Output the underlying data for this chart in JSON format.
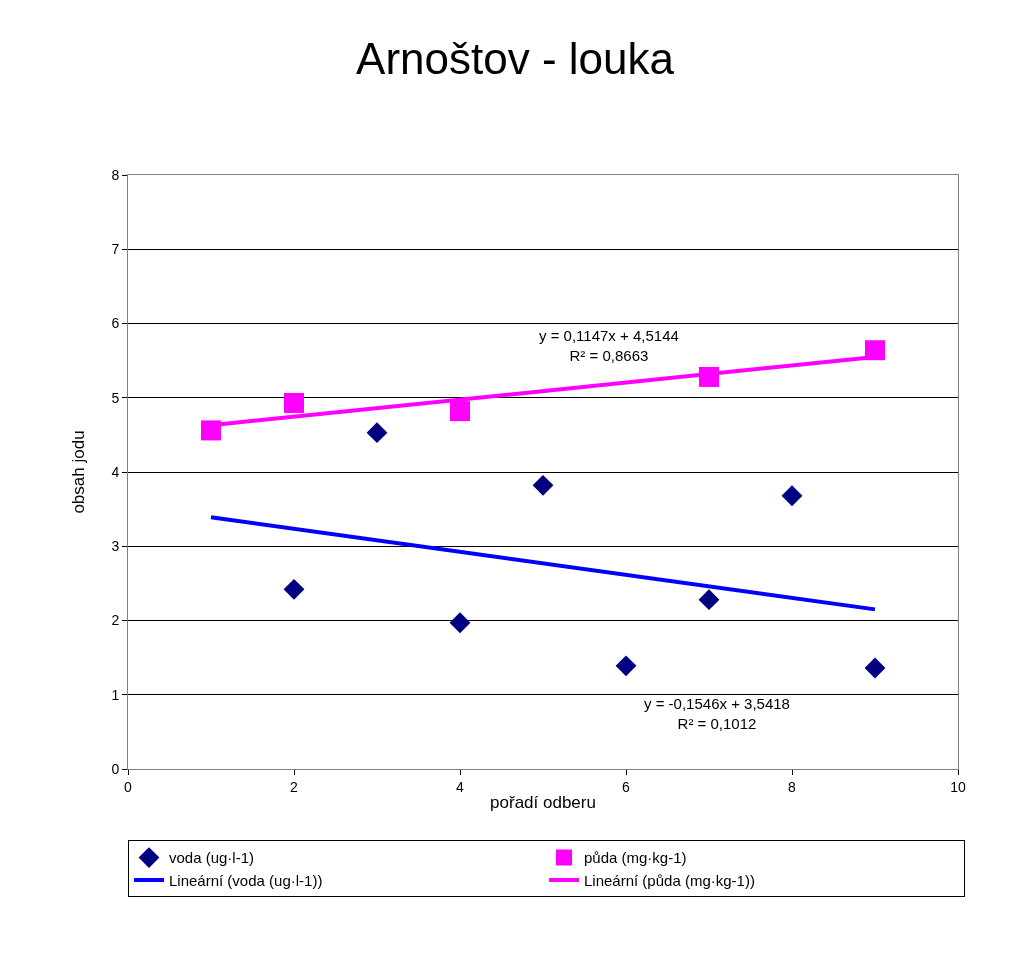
{
  "chart_data": {
    "type": "scatter",
    "title": "Arnoštov - louka",
    "xlabel": "pořadí odberu",
    "ylabel": "obsah jodu",
    "xlim": [
      0,
      10
    ],
    "xticks": [
      0,
      2,
      4,
      6,
      8,
      10
    ],
    "ylim": [
      0,
      8
    ],
    "yticks": [
      0,
      1,
      2,
      3,
      4,
      5,
      6,
      7,
      8
    ],
    "grid": "y",
    "legend": "bottom",
    "series": [
      {
        "name": "voda (ug·l-1)",
        "marker": "diamond",
        "color": "#000080",
        "x": [
          2,
          3,
          4,
          5,
          6,
          7,
          8,
          9
        ],
        "values": [
          2.42,
          4.53,
          1.97,
          3.82,
          1.39,
          2.28,
          3.68,
          1.36
        ]
      },
      {
        "name": "půda (mg·kg-1)",
        "marker": "square",
        "color": "#ff00ff",
        "x": [
          1,
          2,
          4,
          7,
          9
        ],
        "values": [
          4.56,
          4.93,
          4.82,
          5.28,
          5.64
        ]
      },
      {
        "name": "Lineární (voda (ug·l-1))",
        "type": "line",
        "marker": "none",
        "color": "#0000ff",
        "x": [
          1,
          9
        ],
        "values": [
          3.39,
          2.15
        ]
      },
      {
        "name": "Lineární (půda (mg·kg-1))",
        "type": "line",
        "marker": "none",
        "color": "#ff00ff",
        "x": [
          1,
          9
        ],
        "values": [
          4.63,
          5.55
        ]
      }
    ],
    "annotations": [
      "y = 0,1147x + 4,5144\nR² = 0,8663",
      "y = -0,1546x + 3,5418\nR² = 0,1012"
    ]
  }
}
